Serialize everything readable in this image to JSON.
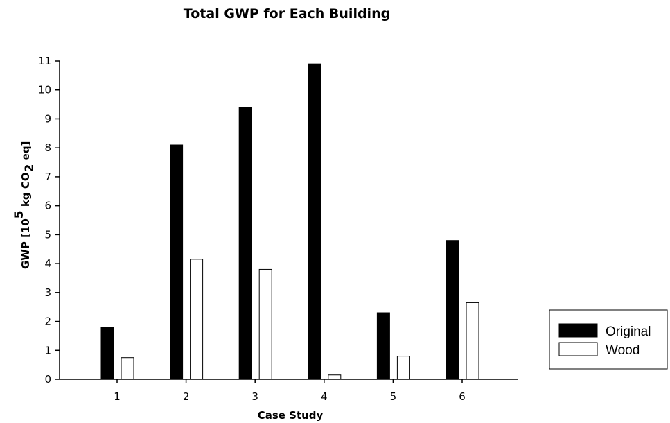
{
  "chart_data": {
    "type": "bar",
    "title": "Total GWP for Each Building",
    "xlabel": "Case Study",
    "ylabel": {
      "prefix": "GWP [10",
      "exponent": "5",
      "unit": " kg CO",
      "subscript": "2",
      "suffix": " eq]"
    },
    "categories": [
      "1",
      "2",
      "3",
      "4",
      "5",
      "6"
    ],
    "ylim": [
      0,
      11
    ],
    "yticks": [
      0,
      1,
      2,
      3,
      4,
      5,
      6,
      7,
      8,
      9,
      10,
      11
    ],
    "grid": false,
    "legend_position": "right",
    "series": [
      {
        "name": "Original",
        "color": "#000000",
        "values": [
          1.8,
          8.1,
          9.4,
          10.9,
          2.3,
          4.8
        ]
      },
      {
        "name": "Wood",
        "color": "#ffffff",
        "values": [
          0.75,
          4.15,
          3.8,
          0.15,
          0.8,
          2.65
        ]
      }
    ]
  }
}
